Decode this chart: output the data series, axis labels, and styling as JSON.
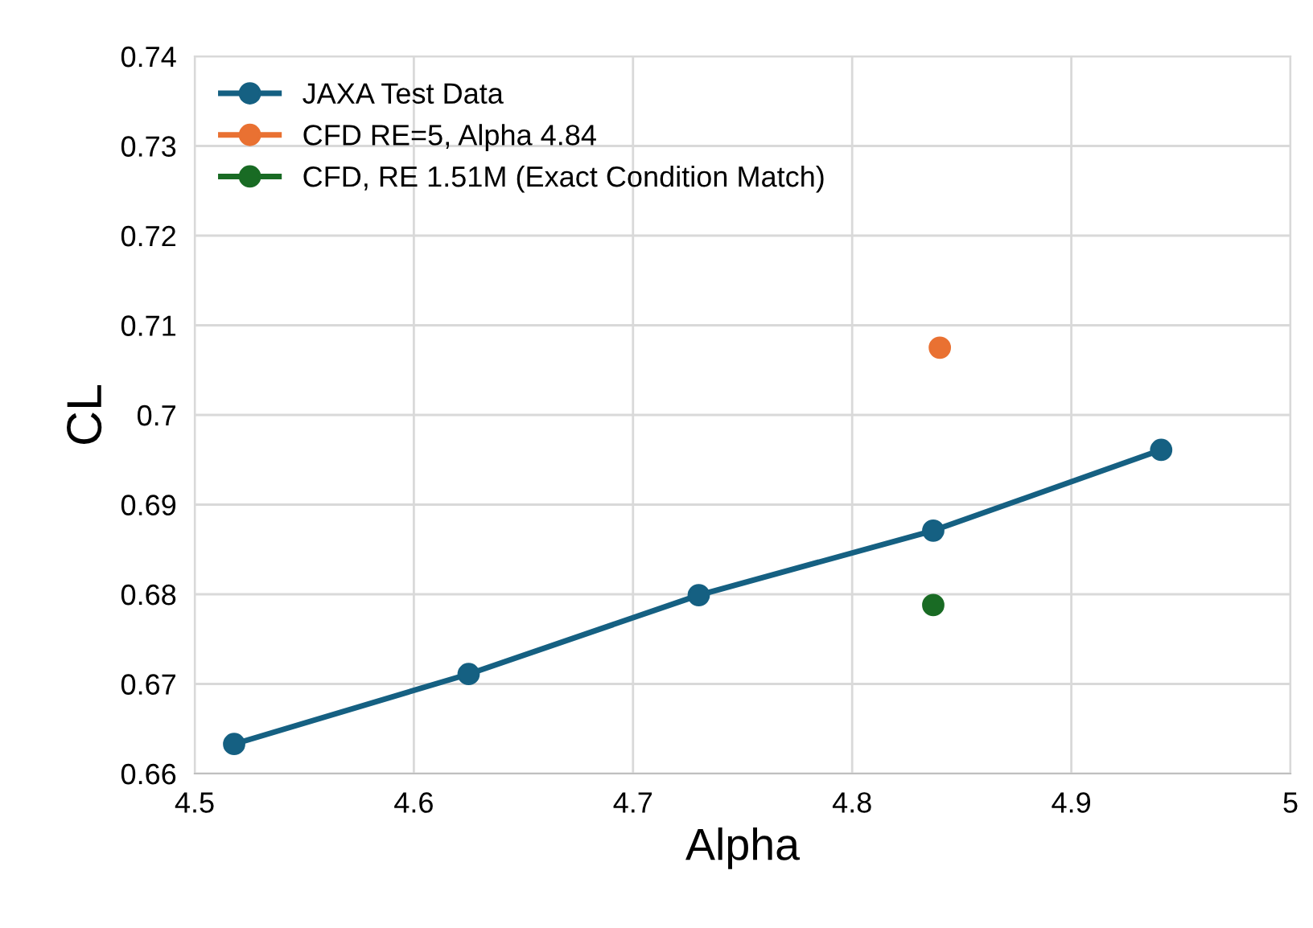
{
  "chart_data": {
    "type": "line",
    "xlabel": "Alpha",
    "ylabel": "CL",
    "xlim": [
      4.5,
      5
    ],
    "xticks": [
      4.5,
      4.6,
      4.7,
      4.8,
      4.9,
      5
    ],
    "ylim": [
      0.66,
      0.74
    ],
    "yticks": [
      0.66,
      0.67,
      0.68,
      0.69,
      0.7,
      0.71,
      0.72,
      0.73,
      0.74
    ],
    "grid": true,
    "legend": "top left",
    "marker": "circle",
    "series": [
      {
        "name": "JAXA Test Data",
        "color": "#156082",
        "x": [
          4.518,
          4.625,
          4.73,
          4.837,
          4.941
        ],
        "values": [
          0.6633,
          0.6711,
          0.6799,
          0.6871,
          0.6961
        ]
      },
      {
        "name": "CFD RE=5, Alpha 4.84",
        "color": "#e97132",
        "x": [
          4.84
        ],
        "values": [
          0.7075
        ]
      },
      {
        "name": "CFD, RE 1.51M (Exact Condition Match)",
        "color": "#196b24",
        "x": [
          4.837
        ],
        "values": [
          0.6788
        ]
      }
    ]
  }
}
